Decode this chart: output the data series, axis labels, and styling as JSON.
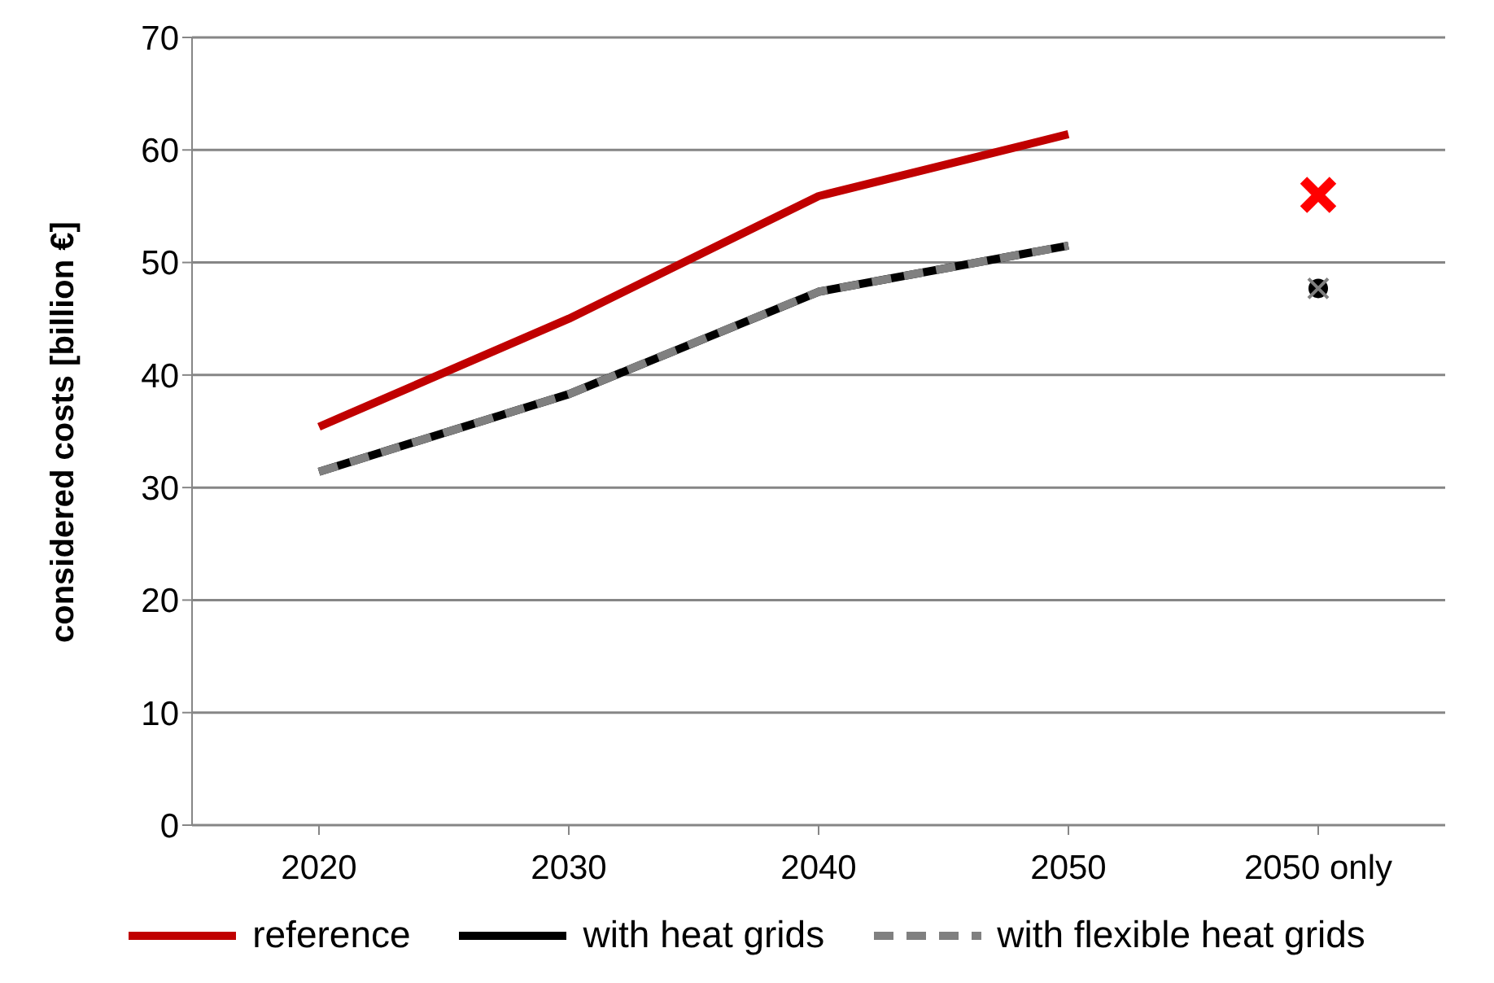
{
  "chart_data": {
    "type": "line",
    "ylabel": "considered costs [billion €]",
    "categories": [
      "2020",
      "2030",
      "2040",
      "2050",
      "2050 only"
    ],
    "ylim": [
      0,
      70
    ],
    "yticks": [
      0,
      10,
      20,
      30,
      40,
      50,
      60,
      70
    ],
    "grid": "y",
    "legend": "bottom",
    "series": [
      {
        "name": "reference",
        "color": "#c00000",
        "values": [
          35.4,
          45.0,
          55.9,
          61.4,
          null
        ]
      },
      {
        "name": "with heat grids",
        "color": "#000000",
        "values": [
          31.4,
          38.3,
          47.4,
          51.5,
          null
        ]
      },
      {
        "name": "with flexible heat grids",
        "color": "#808080",
        "line_style": "dashed",
        "values": [
          31.4,
          38.3,
          47.4,
          51.5,
          null
        ]
      },
      {
        "type": "scatter",
        "marker": "cross",
        "color": "#ff0000",
        "values": [
          null,
          null,
          null,
          null,
          56.0
        ]
      },
      {
        "type": "scatter",
        "marker": "circle",
        "color": "#000000",
        "values": [
          null,
          null,
          null,
          null,
          47.7
        ]
      },
      {
        "type": "scatter",
        "marker": "cross",
        "color": "#808080",
        "values": [
          null,
          null,
          null,
          null,
          47.7
        ]
      }
    ]
  }
}
